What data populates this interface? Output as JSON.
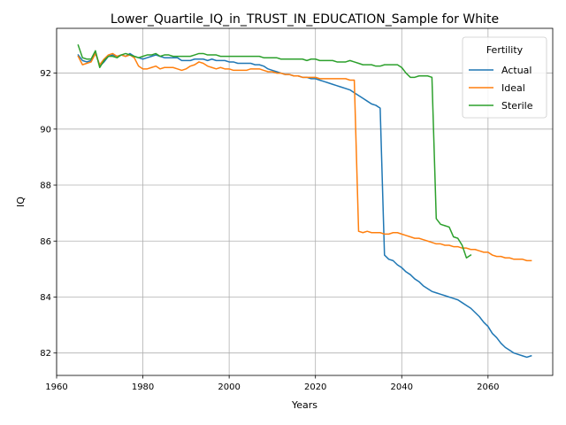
{
  "chart_data": {
    "type": "line",
    "title": "Lower_Quartile_IQ_in_TRUST_IN_EDUCATION_Sample for White",
    "xlabel": "Years",
    "ylabel": "IQ",
    "xlim": [
      1960,
      2075
    ],
    "ylim": [
      81.2,
      93.6
    ],
    "xticks": [
      1960,
      1980,
      2000,
      2020,
      2040,
      2060
    ],
    "yticks": [
      82,
      84,
      86,
      88,
      90,
      92
    ],
    "grid": true,
    "legend": {
      "title": "Fertility",
      "position": "top-right"
    },
    "series": [
      {
        "name": "Actual",
        "color": "#1f77b4",
        "points": [
          [
            1965,
            92.65
          ],
          [
            1966,
            92.45
          ],
          [
            1967,
            92.4
          ],
          [
            1968,
            92.45
          ],
          [
            1969,
            92.75
          ],
          [
            1970,
            92.25
          ],
          [
            1971,
            92.4
          ],
          [
            1972,
            92.6
          ],
          [
            1973,
            92.65
          ],
          [
            1974,
            92.6
          ],
          [
            1975,
            92.65
          ],
          [
            1976,
            92.6
          ],
          [
            1977,
            92.7
          ],
          [
            1978,
            92.6
          ],
          [
            1979,
            92.55
          ],
          [
            1980,
            92.5
          ],
          [
            1981,
            92.55
          ],
          [
            1982,
            92.6
          ],
          [
            1983,
            92.65
          ],
          [
            1984,
            92.6
          ],
          [
            1985,
            92.55
          ],
          [
            1986,
            92.55
          ],
          [
            1987,
            92.55
          ],
          [
            1988,
            92.55
          ],
          [
            1989,
            92.45
          ],
          [
            1990,
            92.45
          ],
          [
            1991,
            92.45
          ],
          [
            1992,
            92.5
          ],
          [
            1993,
            92.5
          ],
          [
            1994,
            92.5
          ],
          [
            1995,
            92.45
          ],
          [
            1996,
            92.5
          ],
          [
            1997,
            92.45
          ],
          [
            1998,
            92.45
          ],
          [
            1999,
            92.45
          ],
          [
            2000,
            92.4
          ],
          [
            2001,
            92.4
          ],
          [
            2002,
            92.35
          ],
          [
            2003,
            92.35
          ],
          [
            2004,
            92.35
          ],
          [
            2005,
            92.35
          ],
          [
            2006,
            92.3
          ],
          [
            2007,
            92.3
          ],
          [
            2008,
            92.25
          ],
          [
            2009,
            92.15
          ],
          [
            2010,
            92.1
          ],
          [
            2011,
            92.05
          ],
          [
            2012,
            92.0
          ],
          [
            2013,
            91.95
          ],
          [
            2014,
            91.95
          ],
          [
            2015,
            91.9
          ],
          [
            2016,
            91.9
          ],
          [
            2017,
            91.85
          ],
          [
            2018,
            91.85
          ],
          [
            2019,
            91.8
          ],
          [
            2020,
            91.8
          ],
          [
            2021,
            91.75
          ],
          [
            2022,
            91.7
          ],
          [
            2023,
            91.65
          ],
          [
            2024,
            91.6
          ],
          [
            2025,
            91.55
          ],
          [
            2026,
            91.5
          ],
          [
            2027,
            91.45
          ],
          [
            2028,
            91.4
          ],
          [
            2029,
            91.3
          ],
          [
            2030,
            91.2
          ],
          [
            2031,
            91.1
          ],
          [
            2032,
            91.0
          ],
          [
            2033,
            90.9
          ],
          [
            2034,
            90.85
          ],
          [
            2035,
            90.75
          ],
          [
            2036,
            85.5
          ],
          [
            2037,
            85.35
          ],
          [
            2038,
            85.3
          ],
          [
            2039,
            85.15
          ],
          [
            2040,
            85.05
          ],
          [
            2041,
            84.9
          ],
          [
            2042,
            84.8
          ],
          [
            2043,
            84.65
          ],
          [
            2044,
            84.55
          ],
          [
            2045,
            84.4
          ],
          [
            2046,
            84.3
          ],
          [
            2047,
            84.2
          ],
          [
            2048,
            84.15
          ],
          [
            2049,
            84.1
          ],
          [
            2050,
            84.05
          ],
          [
            2051,
            84.0
          ],
          [
            2052,
            83.95
          ],
          [
            2053,
            83.9
          ],
          [
            2054,
            83.8
          ],
          [
            2055,
            83.7
          ],
          [
            2056,
            83.6
          ],
          [
            2057,
            83.45
          ],
          [
            2058,
            83.3
          ],
          [
            2059,
            83.1
          ],
          [
            2060,
            82.95
          ],
          [
            2061,
            82.7
          ],
          [
            2062,
            82.55
          ],
          [
            2063,
            82.35
          ],
          [
            2064,
            82.2
          ],
          [
            2065,
            82.1
          ],
          [
            2066,
            82.0
          ],
          [
            2067,
            81.95
          ],
          [
            2068,
            81.9
          ],
          [
            2069,
            81.85
          ],
          [
            2070,
            81.9
          ]
        ]
      },
      {
        "name": "Ideal",
        "color": "#ff7f0e",
        "points": [
          [
            1965,
            92.6
          ],
          [
            1966,
            92.3
          ],
          [
            1967,
            92.35
          ],
          [
            1968,
            92.4
          ],
          [
            1969,
            92.7
          ],
          [
            1970,
            92.3
          ],
          [
            1971,
            92.5
          ],
          [
            1972,
            92.65
          ],
          [
            1973,
            92.7
          ],
          [
            1974,
            92.6
          ],
          [
            1975,
            92.65
          ],
          [
            1976,
            92.6
          ],
          [
            1977,
            92.65
          ],
          [
            1978,
            92.55
          ],
          [
            1979,
            92.25
          ],
          [
            1980,
            92.15
          ],
          [
            1981,
            92.15
          ],
          [
            1982,
            92.2
          ],
          [
            1983,
            92.25
          ],
          [
            1984,
            92.15
          ],
          [
            1985,
            92.2
          ],
          [
            1986,
            92.2
          ],
          [
            1987,
            92.2
          ],
          [
            1988,
            92.15
          ],
          [
            1989,
            92.1
          ],
          [
            1990,
            92.15
          ],
          [
            1991,
            92.25
          ],
          [
            1992,
            92.3
          ],
          [
            1993,
            92.4
          ],
          [
            1994,
            92.35
          ],
          [
            1995,
            92.25
          ],
          [
            1996,
            92.2
          ],
          [
            1997,
            92.15
          ],
          [
            1998,
            92.2
          ],
          [
            1999,
            92.15
          ],
          [
            2000,
            92.15
          ],
          [
            2001,
            92.1
          ],
          [
            2002,
            92.1
          ],
          [
            2003,
            92.1
          ],
          [
            2004,
            92.1
          ],
          [
            2005,
            92.15
          ],
          [
            2006,
            92.15
          ],
          [
            2007,
            92.15
          ],
          [
            2008,
            92.1
          ],
          [
            2009,
            92.05
          ],
          [
            2010,
            92.05
          ],
          [
            2011,
            92.0
          ],
          [
            2012,
            92.0
          ],
          [
            2013,
            91.95
          ],
          [
            2014,
            91.95
          ],
          [
            2015,
            91.9
          ],
          [
            2016,
            91.9
          ],
          [
            2017,
            91.85
          ],
          [
            2018,
            91.85
          ],
          [
            2019,
            91.85
          ],
          [
            2020,
            91.85
          ],
          [
            2021,
            91.8
          ],
          [
            2022,
            91.8
          ],
          [
            2023,
            91.8
          ],
          [
            2024,
            91.8
          ],
          [
            2025,
            91.8
          ],
          [
            2026,
            91.8
          ],
          [
            2027,
            91.8
          ],
          [
            2028,
            91.75
          ],
          [
            2029,
            91.75
          ],
          [
            2030,
            86.35
          ],
          [
            2031,
            86.3
          ],
          [
            2032,
            86.35
          ],
          [
            2033,
            86.3
          ],
          [
            2034,
            86.3
          ],
          [
            2035,
            86.3
          ],
          [
            2036,
            86.25
          ],
          [
            2037,
            86.25
          ],
          [
            2038,
            86.3
          ],
          [
            2039,
            86.3
          ],
          [
            2040,
            86.25
          ],
          [
            2041,
            86.2
          ],
          [
            2042,
            86.15
          ],
          [
            2043,
            86.1
          ],
          [
            2044,
            86.1
          ],
          [
            2045,
            86.05
          ],
          [
            2046,
            86.0
          ],
          [
            2047,
            85.95
          ],
          [
            2048,
            85.9
          ],
          [
            2049,
            85.9
          ],
          [
            2050,
            85.85
          ],
          [
            2051,
            85.85
          ],
          [
            2052,
            85.8
          ],
          [
            2053,
            85.8
          ],
          [
            2054,
            85.75
          ],
          [
            2055,
            85.75
          ],
          [
            2056,
            85.7
          ],
          [
            2057,
            85.7
          ],
          [
            2058,
            85.65
          ],
          [
            2059,
            85.6
          ],
          [
            2060,
            85.6
          ],
          [
            2061,
            85.5
          ],
          [
            2062,
            85.45
          ],
          [
            2063,
            85.45
          ],
          [
            2064,
            85.4
          ],
          [
            2065,
            85.4
          ],
          [
            2066,
            85.35
          ],
          [
            2067,
            85.35
          ],
          [
            2068,
            85.35
          ],
          [
            2069,
            85.3
          ],
          [
            2070,
            85.3
          ]
        ]
      },
      {
        "name": "Sterile",
        "color": "#2ca02c",
        "points": [
          [
            1965,
            93.0
          ],
          [
            1966,
            92.55
          ],
          [
            1967,
            92.5
          ],
          [
            1968,
            92.5
          ],
          [
            1969,
            92.8
          ],
          [
            1970,
            92.2
          ],
          [
            1971,
            92.45
          ],
          [
            1972,
            92.6
          ],
          [
            1973,
            92.6
          ],
          [
            1974,
            92.55
          ],
          [
            1975,
            92.65
          ],
          [
            1976,
            92.7
          ],
          [
            1977,
            92.65
          ],
          [
            1978,
            92.6
          ],
          [
            1979,
            92.55
          ],
          [
            1980,
            92.6
          ],
          [
            1981,
            92.65
          ],
          [
            1982,
            92.65
          ],
          [
            1983,
            92.7
          ],
          [
            1984,
            92.6
          ],
          [
            1985,
            92.65
          ],
          [
            1986,
            92.65
          ],
          [
            1987,
            92.6
          ],
          [
            1988,
            92.6
          ],
          [
            1989,
            92.6
          ],
          [
            1990,
            92.6
          ],
          [
            1991,
            92.6
          ],
          [
            1992,
            92.65
          ],
          [
            1993,
            92.7
          ],
          [
            1994,
            92.7
          ],
          [
            1995,
            92.65
          ],
          [
            1996,
            92.65
          ],
          [
            1997,
            92.65
          ],
          [
            1998,
            92.6
          ],
          [
            1999,
            92.6
          ],
          [
            2000,
            92.6
          ],
          [
            2001,
            92.6
          ],
          [
            2002,
            92.6
          ],
          [
            2003,
            92.6
          ],
          [
            2004,
            92.6
          ],
          [
            2005,
            92.6
          ],
          [
            2006,
            92.6
          ],
          [
            2007,
            92.6
          ],
          [
            2008,
            92.55
          ],
          [
            2009,
            92.55
          ],
          [
            2010,
            92.55
          ],
          [
            2011,
            92.55
          ],
          [
            2012,
            92.5
          ],
          [
            2013,
            92.5
          ],
          [
            2014,
            92.5
          ],
          [
            2015,
            92.5
          ],
          [
            2016,
            92.5
          ],
          [
            2017,
            92.5
          ],
          [
            2018,
            92.45
          ],
          [
            2019,
            92.5
          ],
          [
            2020,
            92.5
          ],
          [
            2021,
            92.45
          ],
          [
            2022,
            92.45
          ],
          [
            2023,
            92.45
          ],
          [
            2024,
            92.45
          ],
          [
            2025,
            92.4
          ],
          [
            2026,
            92.4
          ],
          [
            2027,
            92.4
          ],
          [
            2028,
            92.45
          ],
          [
            2029,
            92.4
          ],
          [
            2030,
            92.35
          ],
          [
            2031,
            92.3
          ],
          [
            2032,
            92.3
          ],
          [
            2033,
            92.3
          ],
          [
            2034,
            92.25
          ],
          [
            2035,
            92.25
          ],
          [
            2036,
            92.3
          ],
          [
            2037,
            92.3
          ],
          [
            2038,
            92.3
          ],
          [
            2039,
            92.3
          ],
          [
            2040,
            92.2
          ],
          [
            2041,
            92.0
          ],
          [
            2042,
            91.85
          ],
          [
            2043,
            91.85
          ],
          [
            2044,
            91.9
          ],
          [
            2045,
            91.9
          ],
          [
            2046,
            91.9
          ],
          [
            2047,
            91.85
          ],
          [
            2048,
            86.8
          ],
          [
            2049,
            86.6
          ],
          [
            2050,
            86.55
          ],
          [
            2051,
            86.5
          ],
          [
            2052,
            86.15
          ],
          [
            2053,
            86.1
          ],
          [
            2054,
            85.85
          ],
          [
            2055,
            85.4
          ],
          [
            2056,
            85.5
          ]
        ]
      }
    ]
  }
}
